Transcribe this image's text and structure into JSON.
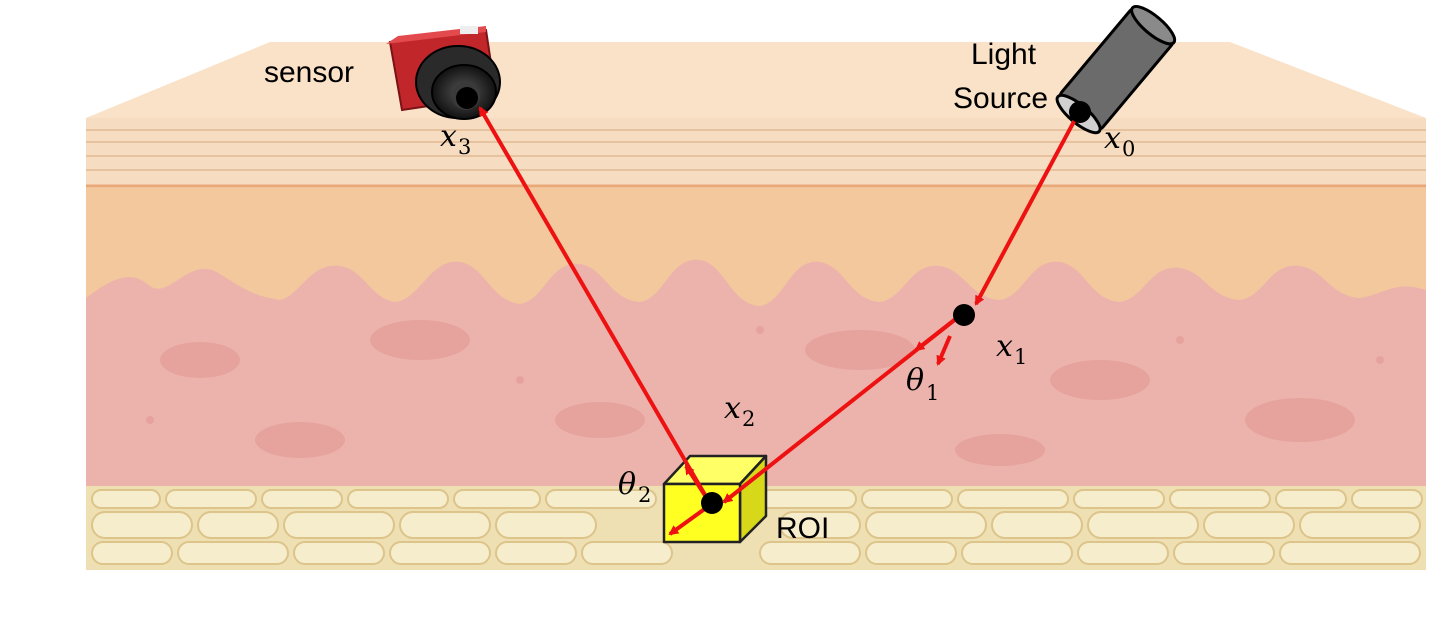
{
  "labels": {
    "sensor": "sensor",
    "light_source_line1": "Light",
    "light_source_line2": "Source",
    "roi": "ROI"
  },
  "points": {
    "x0": {
      "base": "x",
      "sub": "0"
    },
    "x1": {
      "base": "x",
      "sub": "1"
    },
    "x2": {
      "base": "x",
      "sub": "2"
    },
    "x3": {
      "base": "x",
      "sub": "3"
    }
  },
  "angles": {
    "theta1": {
      "base": "θ",
      "sub": "1"
    },
    "theta2": {
      "base": "θ",
      "sub": "2"
    }
  },
  "colors": {
    "ray": "#ee1111",
    "epidermis": "#f6ddc2",
    "epidermis_lines": "#e8c4a0",
    "dermis_upper": "#f3c89c",
    "dermis": "#ecb3ac",
    "dermis_spots": "#e9a39f",
    "fat_layer": "#f2e8c2",
    "fat_cells": "#e6d6a0",
    "roi_box": "#ffff22",
    "camera_body": "#c0262a",
    "light_source": "#6b6b6b"
  }
}
